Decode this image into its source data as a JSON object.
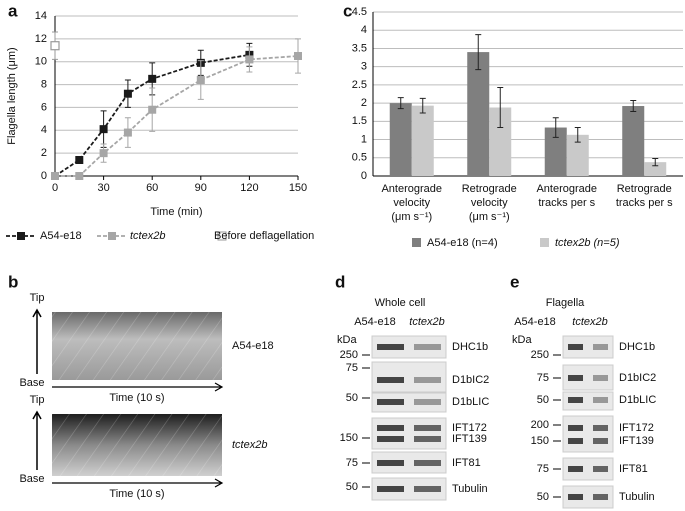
{
  "chart_data": [
    {
      "type": "line",
      "panel": "a",
      "x_label": "Time (min)",
      "y_label": "Flagella length (μm)",
      "xlim": [
        0,
        150
      ],
      "xticks": [
        0,
        30,
        60,
        90,
        120,
        150
      ],
      "ylim": [
        0,
        14
      ],
      "yticks": [
        0,
        2,
        4,
        6,
        8,
        10,
        12,
        14
      ],
      "grid": true,
      "series": [
        {
          "name": "A54-e18",
          "color": "#1a1a1a",
          "linestyle": "dashed",
          "marker": "filled-square",
          "x": [
            0,
            15,
            30,
            45,
            60,
            90,
            120
          ],
          "values": [
            0,
            1.4,
            4.1,
            7.2,
            8.5,
            9.9,
            10.6
          ],
          "errors": [
            0,
            0.3,
            1.6,
            1.2,
            1.4,
            1.1,
            1.0
          ]
        },
        {
          "name": "tctex2b",
          "color": "#a6a6a6",
          "linestyle": "dashed",
          "marker": "filled-square",
          "x": [
            0,
            15,
            30,
            45,
            60,
            90,
            120,
            150
          ],
          "values": [
            0,
            0,
            2.0,
            3.8,
            5.8,
            8.4,
            10.2,
            10.5
          ],
          "errors": [
            0,
            0.2,
            0.8,
            1.3,
            1.9,
            1.7,
            1.1,
            1.5
          ]
        },
        {
          "name": "Before deflagellation",
          "color": "#999999",
          "linestyle": "none",
          "marker": "open-square",
          "x": [
            0
          ],
          "values": [
            11.4
          ],
          "errors": [
            1.2
          ]
        }
      ]
    },
    {
      "type": "bar",
      "panel": "c",
      "categories": [
        [
          "Anterograde",
          "velocity",
          "(μm s⁻¹)"
        ],
        [
          "Retrograde",
          "velocity",
          "(μm s⁻¹)"
        ],
        [
          "Anterograde",
          "tracks per s"
        ],
        [
          "Retrograde",
          "tracks per s"
        ]
      ],
      "ylim": [
        0,
        4.5
      ],
      "yticks": [
        0,
        0.5,
        1,
        1.5,
        2,
        2.5,
        3,
        3.5,
        4,
        4.5
      ],
      "grid": true,
      "series": [
        {
          "name": "A54-e18 (n=4)",
          "color": "#7f7f7f",
          "values": [
            2.0,
            3.4,
            1.33,
            1.92
          ],
          "errors": [
            0.15,
            0.48,
            0.27,
            0.15
          ]
        },
        {
          "name": "tctex2b (n=5)",
          "color": "#c9c9c9",
          "values": [
            1.93,
            1.88,
            1.13,
            0.38
          ],
          "errors": [
            0.2,
            0.55,
            0.2,
            0.1
          ]
        }
      ]
    }
  ],
  "panel_b": {
    "label": "b",
    "tip": "Tip",
    "base": "Base",
    "time": "Time (10 s)",
    "strains": [
      "A54-e18",
      "tctex2b"
    ]
  },
  "panel_d": {
    "label": "d",
    "title": "Whole cell",
    "lanes": [
      "A54-e18",
      "tctex2b"
    ],
    "unit": "kDa",
    "markers": [
      250,
      75,
      50,
      150,
      75,
      50
    ],
    "bands": [
      "DHC1b",
      "D1bIC2",
      "D1bLIC",
      "IFT172",
      "IFT139",
      "IFT81",
      "Tubulin"
    ]
  },
  "panel_e": {
    "label": "e",
    "title": "Flagella",
    "lanes": [
      "A54-e18",
      "tctex2b"
    ],
    "unit": "kDa",
    "markers": [
      250,
      75,
      50,
      200,
      150,
      75,
      50
    ],
    "bands": [
      "DHC1b",
      "D1bIC2",
      "D1bLIC",
      "IFT172",
      "IFT139",
      "IFT81",
      "Tubulin"
    ]
  }
}
